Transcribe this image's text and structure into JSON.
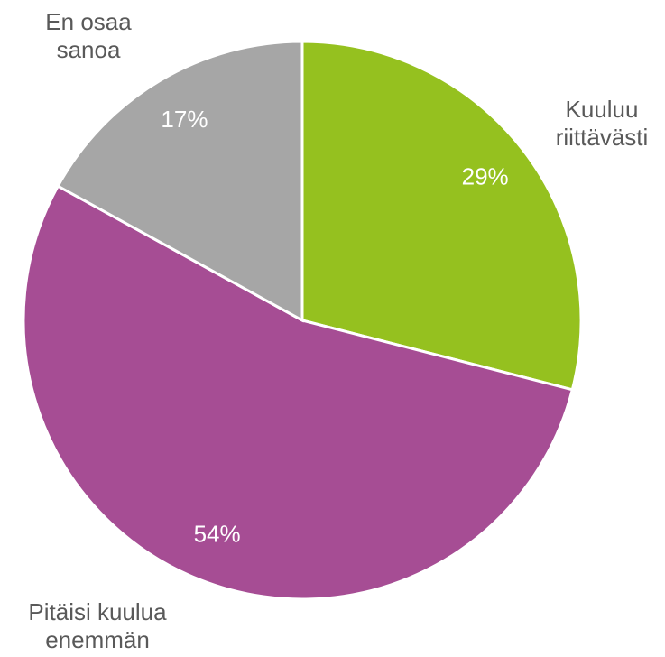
{
  "chart_data": {
    "type": "pie",
    "categories": [
      "Kuuluu riittävästi",
      "Pitäisi kuulua enemmän",
      "En osaa sanoa"
    ],
    "values": [
      29,
      54,
      17
    ],
    "value_labels": [
      "29%",
      "54%",
      "17%"
    ],
    "colors": [
      "#95c11f",
      "#a64d94",
      "#a6a6a6"
    ]
  }
}
